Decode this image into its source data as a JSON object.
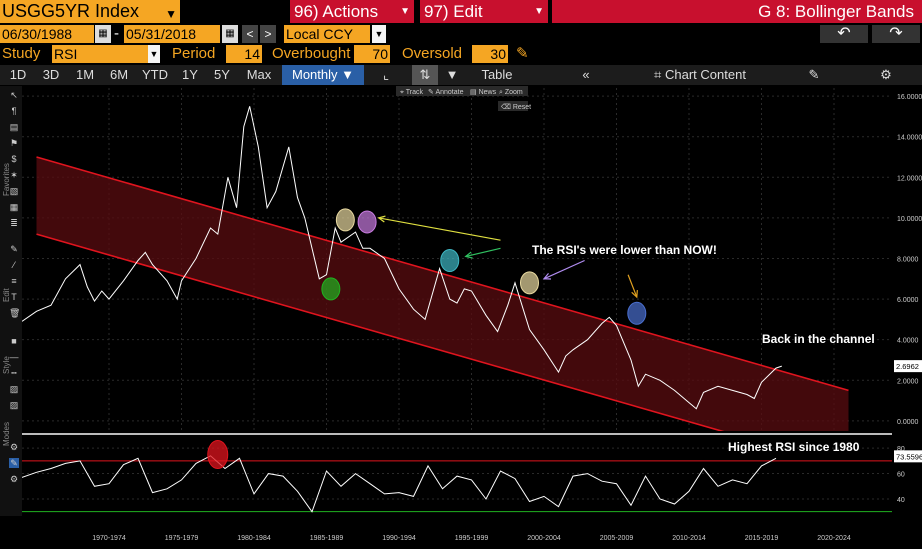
{
  "header": {
    "ticker": "USGG5YR Index",
    "actions": "96) Actions",
    "edit": "97) Edit",
    "function_title": "G 8: Bollinger Bands"
  },
  "controls": {
    "start_date": "06/30/1988",
    "dash": "-",
    "end_date": "05/31/2018",
    "currency": "Local CCY",
    "study_label": "Study",
    "study_value": "RSI",
    "period_label": "Period",
    "period_value": "14",
    "overbought_label": "Overbought",
    "overbought_value": "70",
    "oversold_label": "Oversold",
    "oversold_value": "30"
  },
  "tabs": [
    "1D",
    "3D",
    "1M",
    "6M",
    "YTD",
    "1Y",
    "5Y",
    "Max"
  ],
  "frequency": "Monthly",
  "table_label": "Table",
  "chart_content_label": "Chart Content",
  "mini_toolbar": {
    "track": "Track",
    "annotate": "Annotate",
    "news": "News",
    "zoom": "Zoom",
    "reset": "Reset"
  },
  "side_labels": {
    "favorites": "Favorites",
    "edit": "Edit",
    "style": "Style",
    "modes": "Modes"
  },
  "colors": {
    "accent": "#f5a623",
    "red_button": "#c8102e",
    "channel": "#e0141e",
    "active_tab": "#2a5fa6"
  },
  "chart_data": {
    "type": "line",
    "series": [
      {
        "name": "",
        "x": [
          1966,
          1967,
          1968,
          1969,
          1970,
          1970.5,
          1971,
          1971.5,
          1972,
          1973,
          1974,
          1974.5,
          1975,
          1976,
          1976.7,
          1977,
          1978,
          1979,
          1979.5,
          1980.2,
          1980.8,
          1981.3,
          1981.7,
          1982.3,
          1982.9,
          1983.5,
          1984.4,
          1985,
          1985.5,
          1986,
          1986.5,
          1987,
          1987.6,
          1988,
          1989,
          1989.5,
          1990,
          1991,
          1992,
          1993,
          1993.8,
          1994.8,
          1995.5,
          1996,
          1996.5,
          1997,
          1998,
          1998.8,
          1999.5,
          2000,
          2001,
          2002,
          2003,
          2003.5,
          2004,
          2005,
          2006,
          2006.5,
          2007,
          2008,
          2008.5,
          2009,
          2010,
          2011,
          2012,
          2012.5,
          2013,
          2014,
          2015,
          2016,
          2016.5,
          2017,
          2018,
          2018.4
        ],
        "y": [
          4.9,
          5.4,
          5.7,
          7.0,
          7.7,
          6.6,
          5.9,
          6.4,
          6.0,
          6.9,
          7.9,
          8.3,
          7.7,
          6.9,
          6.0,
          6.9,
          8.0,
          9.5,
          9.2,
          12.0,
          10.5,
          14.5,
          15.5,
          13.5,
          10.5,
          11.3,
          13.5,
          11.0,
          10.0,
          8.5,
          7.0,
          7.2,
          9.5,
          8.8,
          9.3,
          8.5,
          8.5,
          8.0,
          6.5,
          5.5,
          5.0,
          7.5,
          6.0,
          5.8,
          6.5,
          6.4,
          5.2,
          4.4,
          5.7,
          6.8,
          4.5,
          3.5,
          2.4,
          3.2,
          3.5,
          4.0,
          4.8,
          5.1,
          4.7,
          3.0,
          1.7,
          2.3,
          2.0,
          1.5,
          0.9,
          0.6,
          1.4,
          1.7,
          1.5,
          1.3,
          1.1,
          1.9,
          2.6,
          2.7
        ]
      }
    ],
    "channel_upper": {
      "x": [
        1967,
        2023
      ],
      "y": [
        13.0,
        1.5
      ]
    },
    "channel_lower": {
      "x": [
        1967,
        2023
      ],
      "y": [
        9.2,
        -2.3
      ]
    },
    "price_ylim": [
      -0.5,
      16.4
    ],
    "price_yticks": [
      "16.0000",
      "14.0000",
      "12.0000",
      "10.0000",
      "8.0000",
      "6.0000",
      "4.0000",
      "2.0000",
      "0.0000"
    ],
    "price_ytick_values": [
      16,
      14,
      12,
      10,
      8,
      6,
      4,
      2,
      0
    ],
    "xlim": [
      1966,
      2026
    ],
    "x_ticks": [
      "1970-1974",
      "1975-1979",
      "1980-1984",
      "1985-1989",
      "1990-1994",
      "1995-1999",
      "2000-2004",
      "2005-2009",
      "2010-2014",
      "2015-2019",
      "2020-2024"
    ],
    "x_tick_values": [
      1972,
      1977,
      1982,
      1987,
      1992,
      1997,
      2002,
      2007,
      2012,
      2017,
      2022
    ],
    "last_price": "2.6962",
    "last_price_value": 2.6962,
    "rsi": {
      "name": "",
      "x": [
        1966,
        1967,
        1968,
        1969,
        1970,
        1971,
        1972,
        1973,
        1974,
        1975,
        1976,
        1977,
        1978,
        1979,
        1980,
        1981,
        1982,
        1983,
        1984,
        1985,
        1986,
        1987,
        1988,
        1989,
        1990,
        1991,
        1992,
        1993,
        1994,
        1995,
        1996,
        1997,
        1998,
        1999,
        2000,
        2001,
        2002,
        2003,
        2004,
        2005,
        2006,
        2007,
        2008,
        2009,
        2010,
        2011,
        2012,
        2013,
        2014,
        2015,
        2016,
        2017,
        2018
      ],
      "y": [
        57,
        61,
        64,
        68,
        70,
        50,
        52,
        67,
        72,
        45,
        48,
        55,
        68,
        74,
        64,
        72,
        44,
        60,
        58,
        46,
        30,
        62,
        50,
        60,
        52,
        44,
        45,
        42,
        66,
        48,
        58,
        55,
        40,
        62,
        56,
        38,
        42,
        34,
        58,
        60,
        54,
        52,
        35,
        58,
        40,
        36,
        46,
        64,
        50,
        55,
        52,
        66,
        72
      ],
      "ylim": [
        25,
        88
      ],
      "yticks": [
        "80",
        "60",
        "40"
      ],
      "ytick_values": [
        80,
        60,
        40
      ],
      "overbought": 70,
      "oversold": 30,
      "last_value": "73.5596",
      "last_value_num": 73.5596
    },
    "annotations": [
      {
        "text": "The RSI's were lower than NOW!"
      },
      {
        "text": "Back in the channel"
      },
      {
        "text": "Highest RSI since 1980"
      }
    ],
    "markers": [
      {
        "x": 1987.3,
        "y": 6.5,
        "color": "#21b321"
      },
      {
        "x": 1988.3,
        "y": 9.9,
        "color": "#e8d9a0"
      },
      {
        "x": 1989.8,
        "y": 9.8,
        "color": "#c87be0"
      },
      {
        "x": 1995.5,
        "y": 7.9,
        "color": "#3fb8c4"
      },
      {
        "x": 2001.0,
        "y": 6.8,
        "color": "#e8d9a0"
      },
      {
        "x": 2008.4,
        "y": 5.3,
        "color": "#4a6fd0"
      }
    ],
    "rsi_markers": [
      {
        "x": 1979.5,
        "y": 75,
        "color": "#e0141e"
      }
    ],
    "arrows": [
      {
        "from": [
          1999.0,
          8.9
        ],
        "to": [
          1990.6,
          10.0
        ],
        "color": "#e0e040"
      },
      {
        "from": [
          1999.0,
          8.5
        ],
        "to": [
          1996.6,
          8.1
        ],
        "color": "#30c060"
      },
      {
        "from": [
          2004.8,
          7.9
        ],
        "to": [
          2002.0,
          7.0
        ],
        "color": "#b08cf0"
      },
      {
        "from": [
          2007.8,
          7.2
        ],
        "to": [
          2008.4,
          6.1
        ],
        "color": "#e0a020"
      }
    ]
  }
}
